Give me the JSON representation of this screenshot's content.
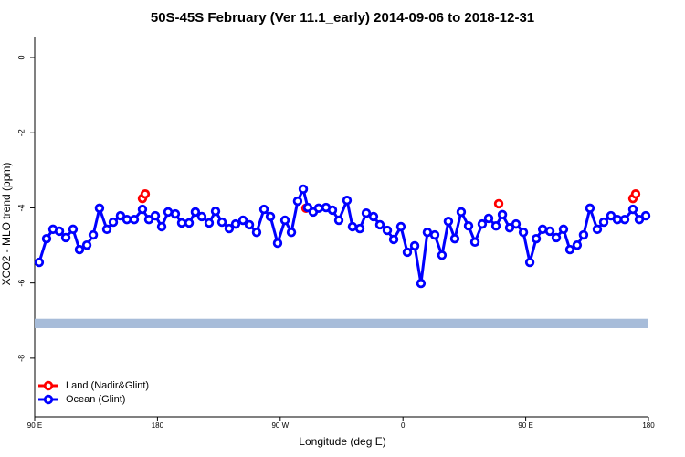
{
  "chart_data": {
    "type": "line",
    "title": "50S-45S February (Ver 11.1_early)   2014-09-06 to 2018-12-31",
    "xlabel": "Longitude (deg E)",
    "ylabel": "XCO2 - MLO trend (ppm)",
    "xlim": [
      90,
      540
    ],
    "xticks": [
      {
        "value": 90,
        "label": "90 E"
      },
      180,
      {
        "value": 270,
        "label": "90 W"
      },
      {
        "value": 360,
        "label": "0"
      },
      {
        "value": 450,
        "label": "90 E"
      },
      {
        "value": 540,
        "label": "180"
      }
    ],
    "ylim": [
      -9.56,
      0.56
    ],
    "yticks": [
      0,
      -2,
      -4,
      -6,
      -8
    ],
    "legend": "bottom-left",
    "band": {
      "ylim": [
        -7.2,
        -6.95
      ],
      "color": "#a7bcd9"
    },
    "series": [
      {
        "name": "Land (Nadir&Glint)",
        "color": "#ff0000",
        "x": [
          169.0,
          171.0,
          288.9,
          430.2,
          528.6,
          530.6
        ],
        "values": [
          -3.75,
          -3.63,
          -4.01,
          -3.89,
          -3.75,
          -3.63
        ]
      },
      {
        "name": "Ocean (Glint)",
        "color": "#0000ff",
        "x": [
          93.3,
          98.7,
          103.4,
          108.1,
          112.8,
          118.1,
          122.8,
          128.2,
          132.9,
          137.5,
          142.9,
          147.6,
          152.9,
          157.6,
          163.0,
          169.0,
          173.7,
          178.4,
          183.1,
          187.8,
          193.1,
          197.8,
          203.2,
          207.8,
          212.5,
          217.9,
          222.6,
          227.3,
          232.6,
          237.3,
          242.7,
          247.4,
          252.7,
          258.1,
          262.8,
          268.1,
          273.5,
          278.2,
          282.8,
          286.9,
          290.2,
          294.2,
          298.2,
          303.6,
          308.3,
          313.0,
          319.0,
          323.0,
          328.4,
          333.1,
          338.4,
          343.1,
          348.5,
          353.2,
          358.5,
          363.2,
          368.6,
          373.2,
          377.9,
          383.3,
          388.6,
          393.3,
          398.0,
          402.7,
          408.1,
          412.8,
          418.1,
          422.8,
          428.2,
          432.9,
          438.2,
          442.9,
          448.3,
          453.0,
          457.7,
          462.4,
          467.7,
          472.4,
          477.7,
          482.4,
          487.7,
          492.4,
          497.1,
          502.5,
          507.2,
          512.5,
          517.2,
          522.6,
          528.6,
          533.3,
          538.0
        ],
        "values": [
          -5.45,
          -4.82,
          -4.57,
          -4.62,
          -4.79,
          -4.57,
          -5.11,
          -4.99,
          -4.72,
          -4.01,
          -4.57,
          -4.38,
          -4.21,
          -4.31,
          -4.31,
          -4.04,
          -4.31,
          -4.21,
          -4.5,
          -4.11,
          -4.16,
          -4.4,
          -4.4,
          -4.11,
          -4.23,
          -4.4,
          -4.09,
          -4.38,
          -4.55,
          -4.43,
          -4.33,
          -4.45,
          -4.65,
          -4.04,
          -4.23,
          -4.94,
          -4.33,
          -4.65,
          -3.82,
          -3.5,
          -3.99,
          -4.11,
          -4.01,
          -3.99,
          -4.06,
          -4.33,
          -3.8,
          -4.5,
          -4.55,
          -4.14,
          -4.23,
          -4.45,
          -4.6,
          -4.84,
          -4.5,
          -5.18,
          -5.01,
          -6.01,
          -4.65,
          -4.72,
          -5.26,
          -4.36,
          -4.82,
          -4.11,
          -4.48,
          -4.91,
          -4.43,
          -4.28,
          -4.48,
          -4.18,
          -4.53,
          -4.43,
          -4.65,
          -5.45,
          -4.82,
          -4.57,
          -4.62,
          -4.79,
          -4.57,
          -5.11,
          -4.99,
          -4.72,
          -4.01,
          -4.57,
          -4.38,
          -4.21,
          -4.31,
          -4.31,
          -4.04,
          -4.31,
          -4.21
        ]
      }
    ]
  }
}
